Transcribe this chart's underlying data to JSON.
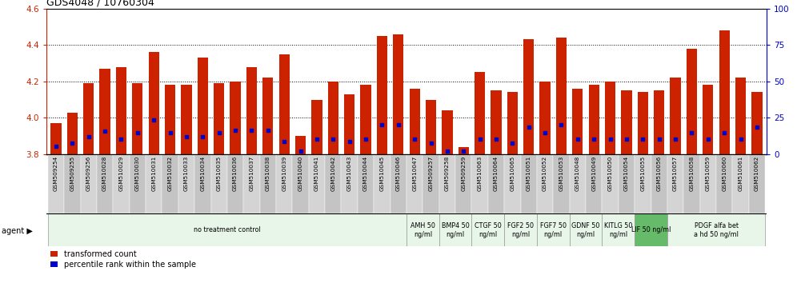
{
  "title": "GDS4048 / 10760304",
  "samples": [
    "GSM509254",
    "GSM509255",
    "GSM509256",
    "GSM510028",
    "GSM510029",
    "GSM510030",
    "GSM510031",
    "GSM510032",
    "GSM510033",
    "GSM510034",
    "GSM510035",
    "GSM510036",
    "GSM510037",
    "GSM510038",
    "GSM510039",
    "GSM510040",
    "GSM510041",
    "GSM510042",
    "GSM510043",
    "GSM510044",
    "GSM510045",
    "GSM510046",
    "GSM510047",
    "GSM509257",
    "GSM509258",
    "GSM509259",
    "GSM510063",
    "GSM510064",
    "GSM510065",
    "GSM510051",
    "GSM510052",
    "GSM510053",
    "GSM510048",
    "GSM510049",
    "GSM510050",
    "GSM510054",
    "GSM510055",
    "GSM510056",
    "GSM510057",
    "GSM510058",
    "GSM510059",
    "GSM510060",
    "GSM510061",
    "GSM510062"
  ],
  "bar_heights": [
    3.97,
    4.03,
    4.19,
    4.27,
    4.28,
    4.19,
    4.36,
    4.18,
    4.18,
    4.33,
    4.19,
    4.2,
    4.28,
    4.22,
    4.35,
    3.9,
    4.1,
    4.2,
    4.13,
    4.18,
    4.45,
    4.46,
    4.16,
    4.1,
    4.04,
    3.84,
    4.25,
    4.15,
    4.14,
    4.43,
    4.2,
    4.44,
    4.16,
    4.18,
    4.2,
    4.15,
    4.14,
    4.15,
    4.22,
    4.38,
    4.18,
    4.48,
    4.22,
    4.14
  ],
  "percentile_heights": [
    3.845,
    3.862,
    3.898,
    3.928,
    3.883,
    3.92,
    3.988,
    3.92,
    3.898,
    3.898,
    3.92,
    3.93,
    3.93,
    3.93,
    3.872,
    3.818,
    3.883,
    3.883,
    3.872,
    3.883,
    3.963,
    3.963,
    3.883,
    3.862,
    3.818,
    3.818,
    3.883,
    3.883,
    3.862,
    3.95,
    3.92,
    3.963,
    3.883,
    3.883,
    3.883,
    3.883,
    3.883,
    3.883,
    3.883,
    3.92,
    3.883,
    3.92,
    3.883,
    3.95
  ],
  "agents": [
    {
      "label": "no treatment control",
      "start": 0,
      "end": 22,
      "color": "#e8f5e9"
    },
    {
      "label": "AMH 50\nng/ml",
      "start": 22,
      "end": 24,
      "color": "#e8f5e9"
    },
    {
      "label": "BMP4 50\nng/ml",
      "start": 24,
      "end": 26,
      "color": "#e8f5e9"
    },
    {
      "label": "CTGF 50\nng/ml",
      "start": 26,
      "end": 28,
      "color": "#e8f5e9"
    },
    {
      "label": "FGF2 50\nng/ml",
      "start": 28,
      "end": 30,
      "color": "#e8f5e9"
    },
    {
      "label": "FGF7 50\nng/ml",
      "start": 30,
      "end": 32,
      "color": "#e8f5e9"
    },
    {
      "label": "GDNF 50\nng/ml",
      "start": 32,
      "end": 34,
      "color": "#e8f5e9"
    },
    {
      "label": "KITLG 50\nng/ml",
      "start": 34,
      "end": 36,
      "color": "#e8f5e9"
    },
    {
      "label": "LIF 50 ng/ml",
      "start": 36,
      "end": 38,
      "color": "#66bb6a"
    },
    {
      "label": "PDGF alfa bet\na hd 50 ng/ml",
      "start": 38,
      "end": 44,
      "color": "#e8f5e9"
    }
  ],
  "ylim_left": [
    3.8,
    4.6
  ],
  "ylim_right": [
    0,
    100
  ],
  "yticks_left": [
    3.8,
    4.0,
    4.2,
    4.4,
    4.6
  ],
  "yticks_right": [
    0,
    25,
    50,
    75,
    100
  ],
  "bar_color": "#cc2200",
  "dot_color": "#0000cc",
  "left_axis_color": "#cc2200",
  "right_axis_color": "#0000cc"
}
